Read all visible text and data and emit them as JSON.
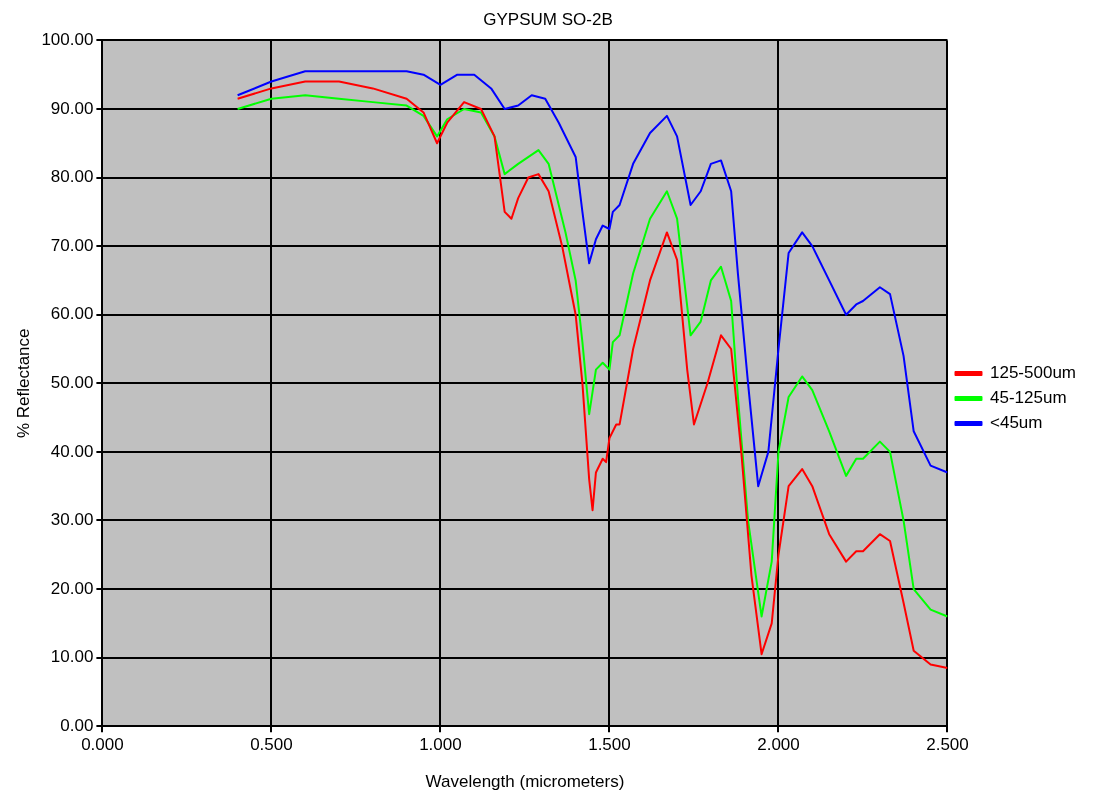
{
  "chart_data": {
    "type": "line",
    "title": "GYPSUM SO-2B",
    "xlabel": "Wavelength (micrometers)",
    "ylabel": "% Reflectance",
    "xlim": [
      0,
      2.5
    ],
    "xticks": [
      {
        "value": 0,
        "label": "0.000"
      },
      {
        "value": 0.5,
        "label": "0.500"
      },
      {
        "value": 1,
        "label": "1.000"
      },
      {
        "value": 1.5,
        "label": "1.500"
      },
      {
        "value": 2,
        "label": "2.000"
      },
      {
        "value": 2.5,
        "label": "2.500"
      }
    ],
    "ylim": [
      0,
      100
    ],
    "yticks": [
      {
        "value": 0,
        "label": "0.00"
      },
      {
        "value": 10,
        "label": "10.00"
      },
      {
        "value": 20,
        "label": "20.00"
      },
      {
        "value": 30,
        "label": "30.00"
      },
      {
        "value": 40,
        "label": "40.00"
      },
      {
        "value": 50,
        "label": "50.00"
      },
      {
        "value": 60,
        "label": "60.00"
      },
      {
        "value": 70,
        "label": "70.00"
      },
      {
        "value": 80,
        "label": "80.00"
      },
      {
        "value": 90,
        "label": "90.00"
      },
      {
        "value": 100,
        "label": "100.00"
      }
    ],
    "grid": true,
    "legend": "right",
    "marker": "none",
    "line_style": "solid",
    "series": [
      {
        "name": "125-500um",
        "color": "#ff0000",
        "x": [
          0.4,
          0.5,
          0.6,
          0.7,
          0.8,
          0.9,
          0.95,
          0.99,
          1.02,
          1.07,
          1.12,
          1.16,
          1.19,
          1.21,
          1.23,
          1.26,
          1.29,
          1.32,
          1.36,
          1.4,
          1.42,
          1.44,
          1.45,
          1.46,
          1.48,
          1.49,
          1.5,
          1.52,
          1.53,
          1.57,
          1.62,
          1.67,
          1.7,
          1.73,
          1.75,
          1.79,
          1.83,
          1.86,
          1.89,
          1.92,
          1.95,
          1.98,
          2.0,
          2.03,
          2.07,
          2.1,
          2.15,
          2.2,
          2.23,
          2.25,
          2.3,
          2.33,
          2.37,
          2.4,
          2.45,
          2.5
        ],
        "values": [
          91.5,
          93,
          94,
          94,
          93,
          91.5,
          89.5,
          85,
          88,
          91,
          90,
          86,
          75,
          74,
          77,
          80,
          80.5,
          78,
          70,
          60,
          50,
          36,
          31.5,
          37,
          39,
          38.5,
          42,
          44,
          44,
          55,
          65,
          72,
          68,
          52,
          44,
          50,
          57,
          55,
          40,
          22,
          10.5,
          15,
          25,
          35,
          37.5,
          35,
          28,
          24,
          25.5,
          25.5,
          28,
          27,
          18,
          11,
          9,
          8.5
        ]
      },
      {
        "name": "45-125um",
        "color": "#00ff00",
        "x": [
          0.4,
          0.5,
          0.6,
          0.7,
          0.8,
          0.9,
          0.95,
          0.99,
          1.02,
          1.07,
          1.12,
          1.16,
          1.19,
          1.23,
          1.29,
          1.32,
          1.37,
          1.4,
          1.42,
          1.44,
          1.46,
          1.48,
          1.5,
          1.51,
          1.53,
          1.57,
          1.62,
          1.67,
          1.7,
          1.74,
          1.77,
          1.8,
          1.83,
          1.86,
          1.88,
          1.91,
          1.95,
          1.98,
          2.0,
          2.03,
          2.07,
          2.1,
          2.15,
          2.2,
          2.23,
          2.25,
          2.3,
          2.33,
          2.37,
          2.4,
          2.45,
          2.5
        ],
        "values": [
          90,
          91.5,
          92,
          91.5,
          91,
          90.5,
          89,
          86,
          88.5,
          90,
          89.5,
          86,
          80.5,
          82,
          84,
          82,
          72,
          65,
          56,
          45.5,
          52,
          53,
          52,
          56,
          57,
          66,
          74,
          78,
          74,
          57,
          59,
          65,
          67,
          62,
          48,
          30,
          16,
          24,
          40,
          48,
          51,
          49,
          43,
          36.5,
          39,
          39,
          41.5,
          40,
          30,
          20,
          17,
          16
        ]
      },
      {
        "name": "<45um",
        "color": "#0000ff",
        "x": [
          0.4,
          0.5,
          0.6,
          0.7,
          0.8,
          0.9,
          0.95,
          1.0,
          1.05,
          1.1,
          1.15,
          1.19,
          1.23,
          1.27,
          1.31,
          1.35,
          1.4,
          1.42,
          1.44,
          1.46,
          1.48,
          1.5,
          1.51,
          1.53,
          1.57,
          1.62,
          1.67,
          1.7,
          1.74,
          1.77,
          1.8,
          1.83,
          1.86,
          1.88,
          1.91,
          1.94,
          1.97,
          2.0,
          2.03,
          2.07,
          2.1,
          2.15,
          2.2,
          2.23,
          2.25,
          2.3,
          2.33,
          2.37,
          2.4,
          2.45,
          2.5
        ],
        "values": [
          92,
          94,
          95.5,
          95.5,
          95.5,
          95.5,
          95,
          93.5,
          95,
          95,
          93,
          90,
          90.5,
          92,
          91.5,
          88,
          83,
          75,
          67.5,
          71,
          73,
          72.5,
          75,
          76,
          82,
          86.5,
          89,
          86,
          76,
          78,
          82,
          82.5,
          78,
          66,
          50,
          35,
          40,
          55,
          69,
          72,
          70,
          65,
          60,
          61.5,
          62,
          64,
          63,
          54,
          43,
          38,
          37
        ]
      }
    ]
  }
}
